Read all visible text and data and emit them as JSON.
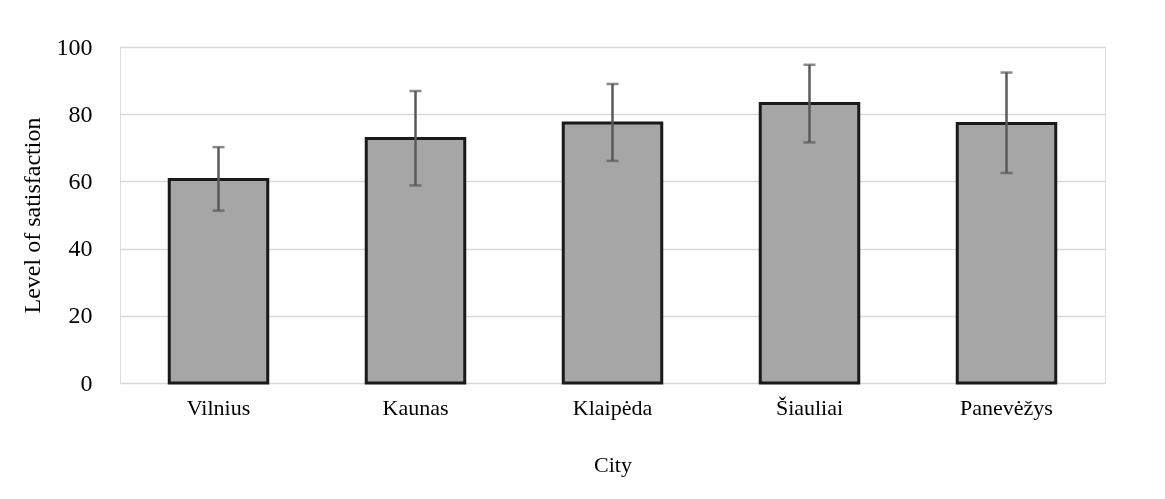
{
  "chart_data": {
    "type": "bar",
    "xlabel": "City",
    "ylabel": "Level of satisfaction",
    "categories": [
      "Vilnius",
      "Kaunas",
      "Klaipėda",
      "Šiauliai",
      "Panevėžys"
    ],
    "values": [
      60.6,
      72.8,
      77.4,
      83.2,
      77.2
    ],
    "errors": [
      [
        51.3,
        70.2
      ],
      [
        58.8,
        86.9
      ],
      [
        66.1,
        89.0
      ],
      [
        71.6,
        94.7
      ],
      [
        62.5,
        92.4
      ]
    ],
    "color": "#a6a6a6",
    "ylim": [
      0,
      100
    ],
    "yticks": [
      0,
      20,
      40,
      60,
      80,
      100
    ],
    "grid": "y"
  }
}
